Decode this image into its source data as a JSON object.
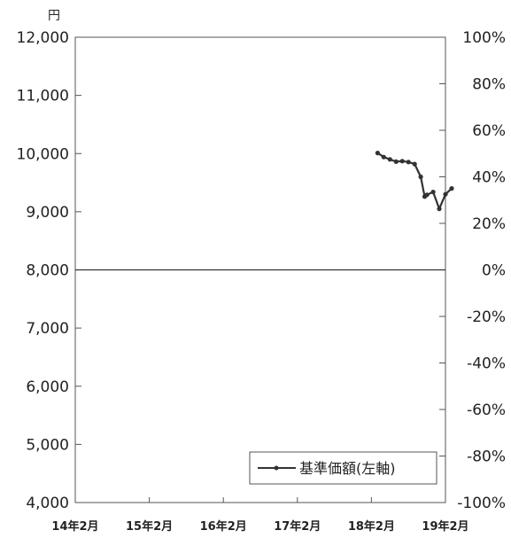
{
  "chart_data": {
    "type": "line",
    "title": "",
    "y_unit_label": "円",
    "xlabel": "",
    "ylabel": "",
    "x_tick_labels": [
      "14年2月",
      "15年2月",
      "16年2月",
      "17年2月",
      "18年2月",
      "19年2月"
    ],
    "ylim_left": [
      4000,
      12000
    ],
    "y_ticks_left": [
      "4,000",
      "5,000",
      "6,000",
      "7,000",
      "8,000",
      "9,000",
      "10,000",
      "11,000",
      "12,000"
    ],
    "ylim_right": [
      -100,
      100
    ],
    "y_ticks_right": [
      "-100%",
      "-80%",
      "-60%",
      "-40%",
      "-20%",
      "0%",
      "20%",
      "40%",
      "60%",
      "80%",
      "100%"
    ],
    "reference_line": 8000,
    "grid": false,
    "legend_position": "bottom-right",
    "series": [
      {
        "name": "基準価額(左軸)",
        "axis": "left",
        "color": "#333333",
        "points": [
          {
            "x": "2018-03",
            "y": 10010
          },
          {
            "x": "2018-04",
            "y": 9940
          },
          {
            "x": "2018-05",
            "y": 9900
          },
          {
            "x": "2018-06",
            "y": 9860
          },
          {
            "x": "2018-07",
            "y": 9870
          },
          {
            "x": "2018-08",
            "y": 9855
          },
          {
            "x": "2018-09",
            "y": 9820
          },
          {
            "x": "2018-10",
            "y": 9600
          },
          {
            "x": "2018-10-20",
            "y": 9260
          },
          {
            "x": "2018-11",
            "y": 9290
          },
          {
            "x": "2018-12",
            "y": 9340
          },
          {
            "x": "2019-01",
            "y": 9050
          },
          {
            "x": "2019-02",
            "y": 9300
          },
          {
            "x": "2019-03",
            "y": 9400
          }
        ]
      }
    ]
  }
}
